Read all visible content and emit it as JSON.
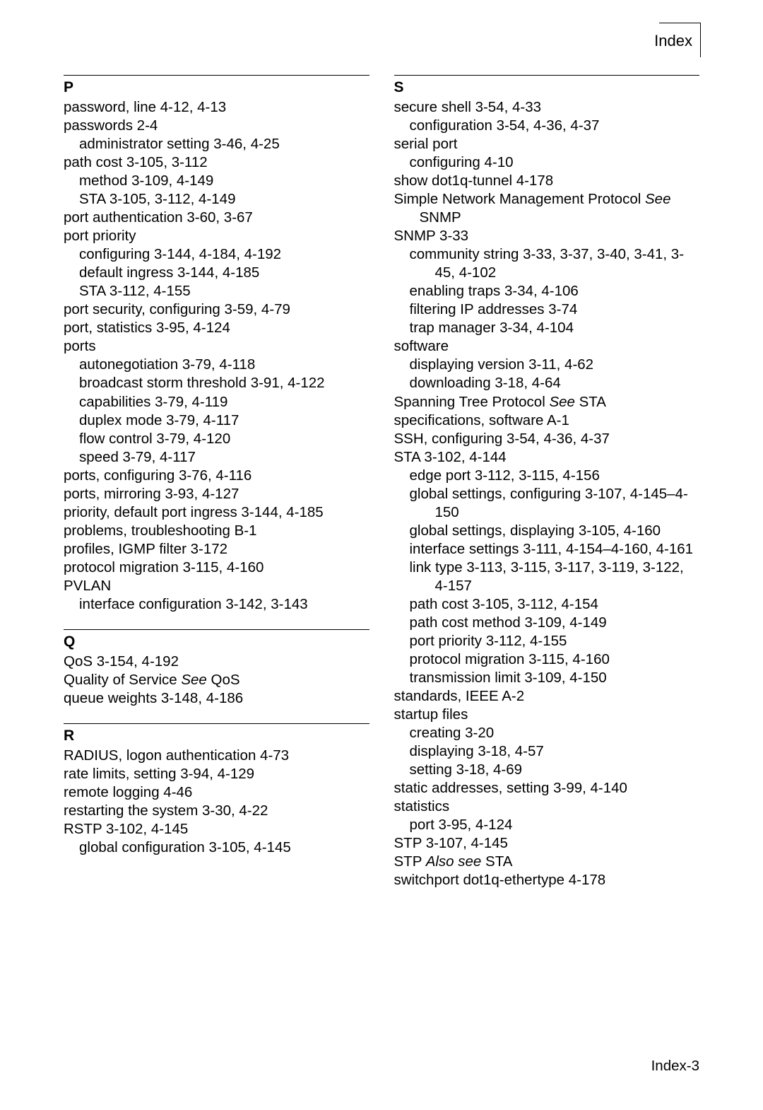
{
  "header": {
    "title": "Index"
  },
  "footer": {
    "page": "Index-3"
  },
  "left": {
    "sections": [
      {
        "letter": "P",
        "entries": [
          {
            "t": "password, line",
            "p": "4-12, 4-13",
            "i": 0
          },
          {
            "t": "passwords",
            "p": "2-4",
            "i": 0
          },
          {
            "t": "administrator setting",
            "p": "3-46, 4-25",
            "i": 1
          },
          {
            "t": "path cost",
            "p": "3-105, 3-112",
            "i": 0
          },
          {
            "t": "method",
            "p": "3-109, 4-149",
            "i": 1
          },
          {
            "t": "STA",
            "p": "3-105, 3-112, 4-149",
            "i": 1
          },
          {
            "t": "port authentication",
            "p": "3-60, 3-67",
            "i": 0
          },
          {
            "t": "port priority",
            "p": "",
            "i": 0
          },
          {
            "t": "configuring",
            "p": "3-144, 4-184, 4-192",
            "i": 1
          },
          {
            "t": "default ingress",
            "p": "3-144, 4-185",
            "i": 1
          },
          {
            "t": "STA",
            "p": "3-112, 4-155",
            "i": 1
          },
          {
            "t": "port security, configuring",
            "p": "3-59, 4-79",
            "i": 0
          },
          {
            "t": "port, statistics",
            "p": "3-95, 4-124",
            "i": 0
          },
          {
            "t": "ports",
            "p": "",
            "i": 0
          },
          {
            "t": "autonegotiation",
            "p": "3-79, 4-118",
            "i": 1
          },
          {
            "t": "broadcast storm threshold",
            "p": "3-91, 4-122",
            "i": 1
          },
          {
            "t": "capabilities",
            "p": "3-79, 4-119",
            "i": 1
          },
          {
            "t": "duplex mode",
            "p": "3-79, 4-117",
            "i": 1
          },
          {
            "t": "flow control",
            "p": "3-79, 4-120",
            "i": 1
          },
          {
            "t": "speed",
            "p": "3-79, 4-117",
            "i": 1
          },
          {
            "t": "ports, configuring",
            "p": "3-76, 4-116",
            "i": 0
          },
          {
            "t": "ports, mirroring",
            "p": "3-93, 4-127",
            "i": 0
          },
          {
            "t": "priority, default port ingress",
            "p": "3-144, 4-185",
            "i": 0
          },
          {
            "t": "problems, troubleshooting",
            "p": "B-1",
            "i": 0
          },
          {
            "t": "profiles, IGMP filter",
            "p": "3-172",
            "i": 0
          },
          {
            "t": "protocol migration",
            "p": "3-115, 4-160",
            "i": 0
          },
          {
            "t": "PVLAN",
            "p": "",
            "i": 0
          },
          {
            "t": "interface configuration",
            "p": "3-142, 3-143",
            "i": 1
          }
        ]
      },
      {
        "letter": "Q",
        "entries": [
          {
            "t": "QoS",
            "p": "3-154, 4-192",
            "i": 0
          },
          {
            "t": "Quality of Service",
            "see": "See",
            "ref": "QoS",
            "i": 0
          },
          {
            "t": "queue weights",
            "p": "3-148, 4-186",
            "i": 0
          }
        ]
      },
      {
        "letter": "R",
        "entries": [
          {
            "t": "RADIUS, logon authentication",
            "p": "4-73",
            "i": 0
          },
          {
            "t": "rate limits, setting",
            "p": "3-94, 4-129",
            "i": 0
          },
          {
            "t": "remote logging",
            "p": "4-46",
            "i": 0
          },
          {
            "t": "restarting the system",
            "p": "3-30, 4-22",
            "i": 0
          },
          {
            "t": "RSTP",
            "p": "3-102, 4-145",
            "i": 0
          },
          {
            "t": "global configuration",
            "p": "3-105, 4-145",
            "i": 1
          }
        ]
      }
    ]
  },
  "right": {
    "sections": [
      {
        "letter": "S",
        "entries": [
          {
            "t": "secure shell",
            "p": "3-54, 4-33",
            "i": 0
          },
          {
            "t": "configuration",
            "p": "3-54, 4-36, 4-37",
            "i": 1
          },
          {
            "t": "serial port",
            "p": "",
            "i": 0
          },
          {
            "t": "configuring",
            "p": "4-10",
            "i": 1
          },
          {
            "t": "show dot1q-tunnel",
            "p": "4-178",
            "i": 0
          },
          {
            "t": "Simple Network Management Protocol",
            "see": "See",
            "ref": "SNMP",
            "i": 0,
            "wrapSee": true
          },
          {
            "t": "SNMP",
            "p": "3-33",
            "i": 0
          },
          {
            "t": "community string",
            "p": "3-33, 3-37, 3-40, 3-41, 3-45, 4-102",
            "i": 1
          },
          {
            "t": "enabling traps",
            "p": "3-34, 4-106",
            "i": 1
          },
          {
            "t": "filtering IP addresses",
            "p": "3-74",
            "i": 1
          },
          {
            "t": "trap manager",
            "p": "3-34, 4-104",
            "i": 1
          },
          {
            "t": "software",
            "p": "",
            "i": 0
          },
          {
            "t": "displaying version",
            "p": "3-11, 4-62",
            "i": 1
          },
          {
            "t": "downloading",
            "p": "3-18, 4-64",
            "i": 1
          },
          {
            "t": "Spanning Tree Protocol",
            "see": "See",
            "ref": "STA",
            "i": 0
          },
          {
            "t": "specifications, software",
            "p": "A-1",
            "i": 0
          },
          {
            "t": "SSH, configuring",
            "p": "3-54, 4-36, 4-37",
            "i": 0
          },
          {
            "t": "STA",
            "p": "3-102, 4-144",
            "i": 0
          },
          {
            "t": "edge port",
            "p": "3-112, 3-115, 4-156",
            "i": 1
          },
          {
            "t": "global settings, configuring",
            "p": "3-107, 4-145–4-150",
            "i": 1
          },
          {
            "t": "global settings, displaying",
            "p": "3-105, 4-160",
            "i": 1
          },
          {
            "t": "interface settings",
            "p": "3-111, 4-154–4-160, 4-161",
            "i": 1
          },
          {
            "t": "link type",
            "p": "3-113, 3-115, 3-117, 3-119, 3-122, 4-157",
            "i": 1
          },
          {
            "t": "path cost",
            "p": "3-105, 3-112, 4-154",
            "i": 1
          },
          {
            "t": "path cost method",
            "p": "3-109, 4-149",
            "i": 1
          },
          {
            "t": "port priority",
            "p": "3-112, 4-155",
            "i": 1
          },
          {
            "t": "protocol migration",
            "p": "3-115, 4-160",
            "i": 1
          },
          {
            "t": "transmission limit",
            "p": "3-109, 4-150",
            "i": 1
          },
          {
            "t": "standards, IEEE",
            "p": "A-2",
            "i": 0
          },
          {
            "t": "startup files",
            "p": "",
            "i": 0
          },
          {
            "t": "creating",
            "p": "3-20",
            "i": 1
          },
          {
            "t": "displaying",
            "p": "3-18, 4-57",
            "i": 1
          },
          {
            "t": "setting",
            "p": "3-18, 4-69",
            "i": 1
          },
          {
            "t": "static addresses, setting",
            "p": "3-99, 4-140",
            "i": 0
          },
          {
            "t": "statistics",
            "p": "",
            "i": 0
          },
          {
            "t": "port",
            "p": "3-95, 4-124",
            "i": 1
          },
          {
            "t": "STP",
            "p": "3-107, 4-145",
            "i": 0
          },
          {
            "t": "STP",
            "see": "Also see",
            "ref": "STA",
            "i": 0
          },
          {
            "t": "switchport dot1q-ethertype",
            "p": "4-178",
            "i": 0
          }
        ]
      }
    ]
  }
}
